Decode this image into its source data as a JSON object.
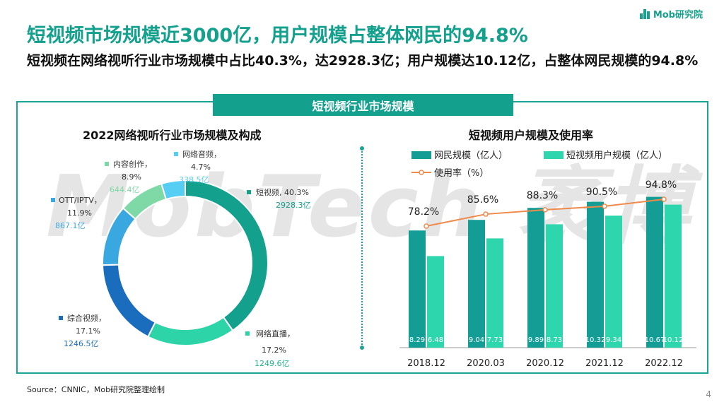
{
  "header": {
    "logo_text": "Mob研究院",
    "title": "短视频市场规模近3000亿，用户规模占整体网民的94.8%",
    "subtitle": "短视频在网络视听行业市场规模中占比40.3%，达2928.3亿；用户规模达10.12亿，占整体网民规模的94.8%"
  },
  "banner": "短视频行业市场规模",
  "watermark": "MobTech 袤博",
  "footer": {
    "source": "Source：CNNIC，Mob研究院整理绘制",
    "page": "4"
  },
  "colors": {
    "accent": "#13a08d",
    "line": "#f08a4b"
  },
  "chart_data": [
    {
      "type": "pie",
      "title": "2022网络视听行业市场规模及构成",
      "slices": [
        {
          "name": "短视频",
          "pct": "40.3%",
          "value_label": "2928.3亿",
          "value": 2928.3,
          "color": "#13a08d"
        },
        {
          "name": "网络直播",
          "pct": "17.2%",
          "value_label": "1249.6亿",
          "value": 1249.6,
          "color": "#2dd4a8"
        },
        {
          "name": "综合视频",
          "pct": "17.1%",
          "value_label": "1246.5亿",
          "value": 1246.5,
          "color": "#1a6dbd"
        },
        {
          "name": "OTT/IPTV",
          "pct": "11.9%",
          "value_label": "867.1亿",
          "value": 867.1,
          "color": "#3aa8e0"
        },
        {
          "name": "内容创作",
          "pct": "8.9%",
          "value_label": "644.4亿",
          "value": 644.4,
          "color": "#7ed9a6"
        },
        {
          "name": "网络音频",
          "pct": "4.7%",
          "value_label": "338.5亿",
          "value": 338.5,
          "color": "#56cdf2"
        }
      ]
    },
    {
      "type": "bar",
      "title": "短视频用户规模及使用率",
      "categories": [
        "2018.12",
        "2020.03",
        "2020.12",
        "2021.12",
        "2022.12"
      ],
      "series": [
        {
          "name": "网民规模（亿人）",
          "values": [
            8.29,
            9.04,
            9.89,
            10.32,
            10.67
          ],
          "color": "#139d94"
        },
        {
          "name": "短视频用户规模（亿人）",
          "values": [
            6.48,
            7.73,
            8.73,
            9.34,
            10.12
          ],
          "color": "#2ed6ad"
        }
      ],
      "line": {
        "name": "使用率（%）",
        "values": [
          78.2,
          85.6,
          88.3,
          90.5,
          94.8
        ],
        "labels": [
          "78.2%",
          "85.6%",
          "88.3%",
          "90.5%",
          "94.8%"
        ],
        "color": "#f08a4b"
      },
      "value_labels": [
        [
          "8.29",
          "6.48"
        ],
        [
          "9.04",
          "7.73"
        ],
        [
          "9.89",
          "8.73"
        ],
        [
          "10.32",
          "9.34"
        ],
        [
          "10.67",
          "10.12"
        ]
      ]
    }
  ]
}
